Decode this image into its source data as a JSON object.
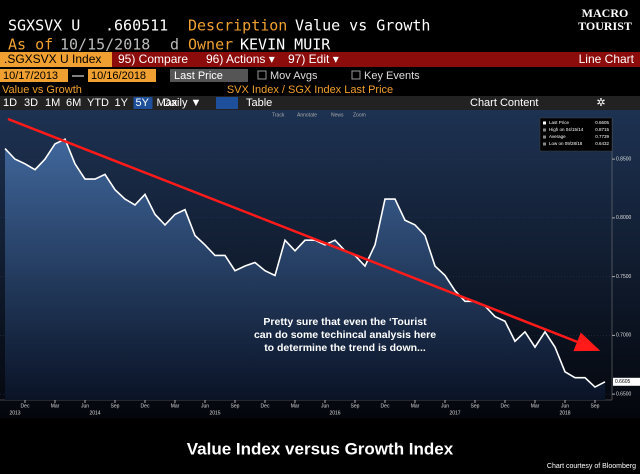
{
  "header": {
    "ticker": "SGXSVX U",
    "price": ".660511",
    "description_label": "Description",
    "description": "Value vs Growth",
    "asof_label": "As of",
    "asof": "10/15/2018",
    "d": "d",
    "owner_label": "Owner",
    "owner": "KEVIN MUIR"
  },
  "logo": {
    "line1": "MACRO",
    "line2": "TOURIST"
  },
  "toolbar": {
    "security": ".SGXSVX U Index",
    "buttons": [
      "95) Compare",
      "96) Actions ▾",
      "97) Edit ▾"
    ],
    "view": "Line Chart"
  },
  "controls": {
    "start": "10/17/2013",
    "end": "10/16/2018",
    "field": "Last Price",
    "options": [
      "Mov Avgs",
      "Key Events"
    ]
  },
  "panel_label": "Value vs Growth",
  "periods": [
    "1D",
    "3D",
    "1M",
    "6M",
    "YTD",
    "1Y",
    "5Y",
    "Max"
  ],
  "frequency": "Daily ▼",
  "table": "Table",
  "chart_content": "Chart Content",
  "chart_tools": [
    "Track",
    "Annotate",
    "News",
    "Zoom"
  ],
  "chart_data": {
    "type": "line",
    "subtitle": "SVX Index / SGX Index Last Price",
    "x": [
      "2013-10",
      "2013-11",
      "2013-12",
      "2014-01",
      "2014-02",
      "2014-03",
      "2014-04",
      "2014-05",
      "2014-06",
      "2014-07",
      "2014-08",
      "2014-09",
      "2014-10",
      "2014-11",
      "2014-12",
      "2015-01",
      "2015-02",
      "2015-03",
      "2015-04",
      "2015-05",
      "2015-06",
      "2015-07",
      "2015-08",
      "2015-09",
      "2015-10",
      "2015-11",
      "2015-12",
      "2016-01",
      "2016-02",
      "2016-03",
      "2016-04",
      "2016-05",
      "2016-06",
      "2016-07",
      "2016-08",
      "2016-09",
      "2016-10",
      "2016-11",
      "2016-12",
      "2017-01",
      "2017-02",
      "2017-03",
      "2017-04",
      "2017-05",
      "2017-06",
      "2017-07",
      "2017-08",
      "2017-09",
      "2017-10",
      "2017-11",
      "2017-12",
      "2018-01",
      "2018-02",
      "2018-03",
      "2018-04",
      "2018-05",
      "2018-06",
      "2018-07",
      "2018-08",
      "2018-09",
      "2018-10"
    ],
    "series": [
      {
        "name": "Last Price",
        "color": "#ffffff",
        "values": [
          0.859,
          0.85,
          0.846,
          0.841,
          0.85,
          0.863,
          0.867,
          0.846,
          0.833,
          0.833,
          0.837,
          0.824,
          0.816,
          0.811,
          0.82,
          0.803,
          0.794,
          0.803,
          0.807,
          0.785,
          0.777,
          0.768,
          0.768,
          0.755,
          0.759,
          0.762,
          0.755,
          0.751,
          0.781,
          0.772,
          0.781,
          0.781,
          0.777,
          0.781,
          0.772,
          0.768,
          0.759,
          0.777,
          0.816,
          0.816,
          0.798,
          0.794,
          0.785,
          0.759,
          0.751,
          0.738,
          0.729,
          0.729,
          0.725,
          0.716,
          0.712,
          0.695,
          0.703,
          0.69,
          0.703,
          0.69,
          0.669,
          0.664,
          0.664,
          0.656,
          0.6605
        ]
      }
    ],
    "ylim": [
      0.645,
      0.885
    ],
    "yticks": [
      {
        "value": 0.65,
        "label": "0.6500"
      },
      {
        "value": 0.7,
        "label": "0.7000"
      },
      {
        "value": 0.75,
        "label": "0.7500"
      },
      {
        "value": 0.8,
        "label": "0.8000"
      },
      {
        "value": 0.85,
        "label": "0.8500"
      }
    ],
    "xticks": [
      {
        "value": "2013-12",
        "label": "Dec"
      },
      {
        "value": "2014-03",
        "label": "Mar"
      },
      {
        "value": "2014-06",
        "label": "Jun"
      },
      {
        "value": "2014-09",
        "label": "Sep"
      },
      {
        "value": "2014-12",
        "label": "Dec"
      },
      {
        "value": "2015-03",
        "label": "Mar"
      },
      {
        "value": "2015-06",
        "label": "Jun"
      },
      {
        "value": "2015-09",
        "label": "Sep"
      },
      {
        "value": "2015-12",
        "label": "Dec"
      },
      {
        "value": "2016-03",
        "label": "Mar"
      },
      {
        "value": "2016-06",
        "label": "Jun"
      },
      {
        "value": "2016-09",
        "label": "Sep"
      },
      {
        "value": "2016-12",
        "label": "Dec"
      },
      {
        "value": "2017-03",
        "label": "Mar"
      },
      {
        "value": "2017-06",
        "label": "Jun"
      },
      {
        "value": "2017-09",
        "label": "Sep"
      },
      {
        "value": "2017-12",
        "label": "Dec"
      },
      {
        "value": "2018-03",
        "label": "Mar"
      },
      {
        "value": "2018-06",
        "label": "Jun"
      },
      {
        "value": "2018-09",
        "label": "Sep"
      }
    ],
    "year_labels": [
      {
        "value": "2013-11",
        "label": "2013"
      },
      {
        "value": "2014-07",
        "label": "2014"
      },
      {
        "value": "2015-07",
        "label": "2015"
      },
      {
        "value": "2016-07",
        "label": "2016"
      },
      {
        "value": "2017-07",
        "label": "2017"
      },
      {
        "value": "2018-06",
        "label": "2018"
      }
    ],
    "legend": [
      {
        "label": "Last Price",
        "value": 0.6605
      },
      {
        "label": "High on 04/15/14",
        "value": 0.8715
      },
      {
        "label": "Average",
        "value": 0.7739
      },
      {
        "label": "Low on 09/28/18",
        "value": 0.6432
      }
    ],
    "annotation": [
      "Pretty sure that even the ‘Tourist",
      "can do some techincal analysis here",
      "to determine the trend is down..."
    ],
    "caption": "Value Index versus Growth Index",
    "credit": "Chart courtesy of Bloomberg"
  }
}
